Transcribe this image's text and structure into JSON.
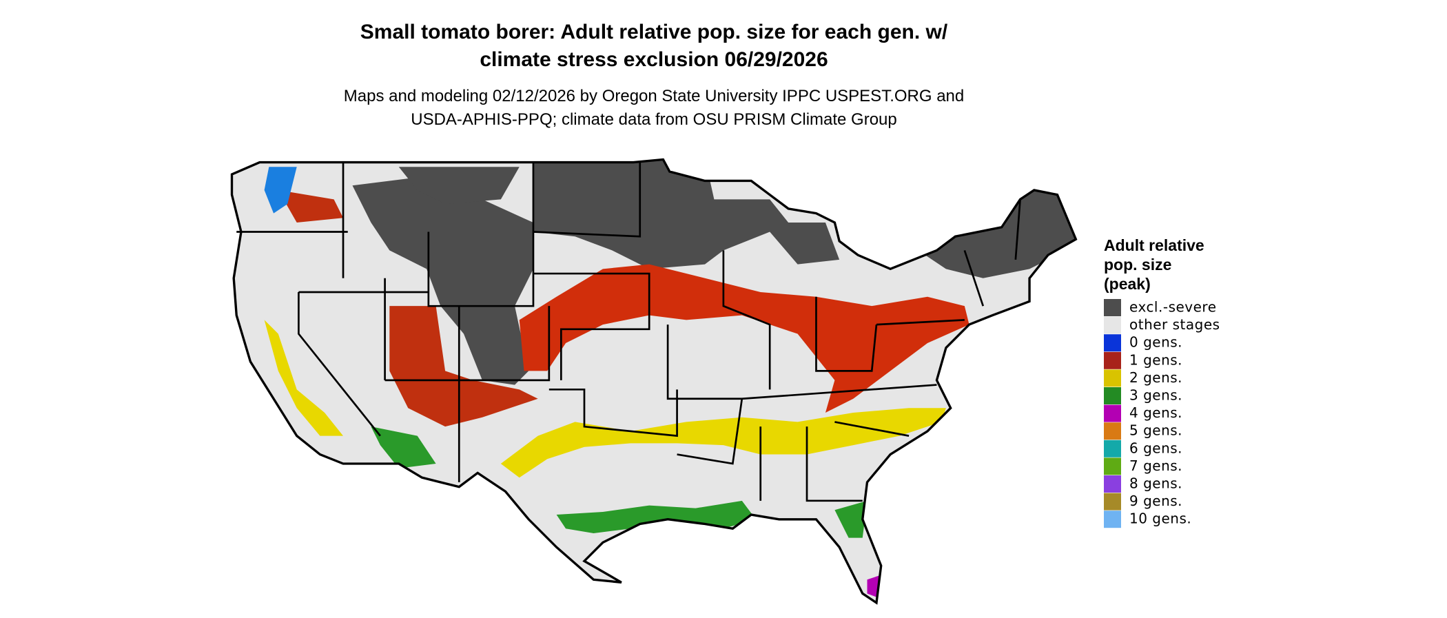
{
  "title": [
    "Small tomato borer: Adult relative pop. size for each gen. w/",
    "climate stress exclusion 06/29/2026"
  ],
  "subtitle": [
    "Maps and modeling 02/12/2026 by Oregon State University IPPC USPEST.ORG and",
    "USDA-APHIS-PPQ; climate data from OSU PRISM Climate Group"
  ],
  "legend": {
    "title": [
      "Adult relative",
      "pop. size",
      "(peak)"
    ],
    "items": [
      {
        "label": "excl.-severe",
        "color": "#4d4d4d"
      },
      {
        "label": "other stages",
        "color": "#e6e6e6"
      },
      {
        "label": "0 gens.",
        "color": "#0a34d9"
      },
      {
        "label": "1 gens.",
        "color": "#a8231a"
      },
      {
        "label": "2 gens.",
        "color": "#d9c300"
      },
      {
        "label": "3 gens.",
        "color": "#238b23"
      },
      {
        "label": "4 gens.",
        "color": "#b300b3"
      },
      {
        "label": "5 gens.",
        "color": "#d97a14"
      },
      {
        "label": "6 gens.",
        "color": "#14a9a9"
      },
      {
        "label": "7 gens.",
        "color": "#5fab14"
      },
      {
        "label": "8 gens.",
        "color": "#8a3fe0"
      },
      {
        "label": "9 gens.",
        "color": "#a68a28"
      },
      {
        "label": "10 gens.",
        "color": "#6fb3f2"
      }
    ]
  }
}
